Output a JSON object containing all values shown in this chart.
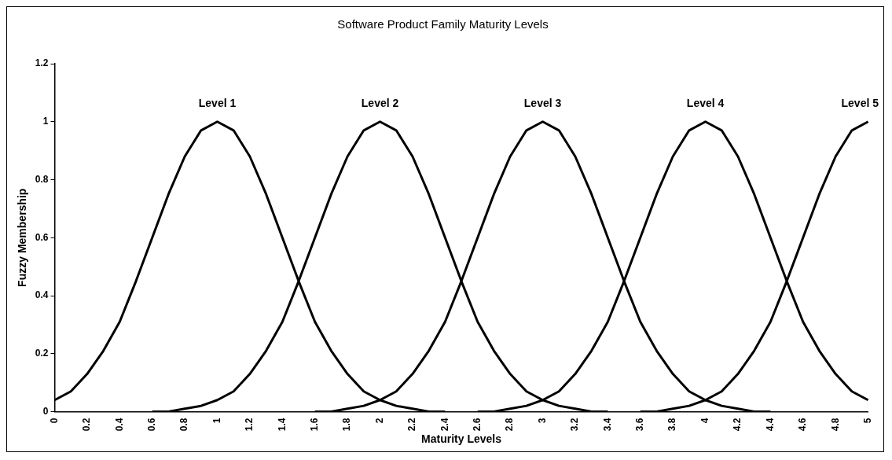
{
  "chart_data": {
    "type": "line",
    "title": "Software Product Family Maturity Levels",
    "xlabel": "Maturity Levels",
    "ylabel": "Fuzzy Membership",
    "categories": [
      "0",
      null,
      "0.2",
      null,
      "0.4",
      null,
      "0.6",
      null,
      "0.8",
      null,
      "1",
      null,
      "1.2",
      null,
      "1.4",
      null,
      "1.6",
      null,
      "1.8",
      null,
      "2",
      null,
      "2.2",
      null,
      "2.4",
      null,
      "2.6",
      null,
      "2.8",
      null,
      "3",
      null,
      "3.2",
      null,
      "3.4",
      null,
      "3.6",
      null,
      "3.8",
      null,
      "4",
      null,
      "4.2",
      null,
      "4.4",
      null,
      "4.6",
      null,
      "4.8",
      null,
      "5"
    ],
    "series": [
      {
        "name": "Level 1",
        "color": "#000000",
        "values": [
          0.04,
          0.07,
          0.13,
          0.21,
          0.31,
          0.45,
          0.6,
          0.75,
          0.88,
          0.97,
          1,
          0.97,
          0.88,
          0.75,
          0.6,
          0.45,
          0.31,
          0.21,
          0.13,
          0.07,
          0.04,
          0.02,
          0.01,
          0,
          0,
          null,
          null,
          null,
          null,
          null,
          null,
          null,
          null,
          null,
          null,
          null,
          null,
          null,
          null,
          null,
          null,
          null,
          null,
          null,
          null,
          null,
          null,
          null,
          null,
          null,
          null
        ]
      },
      {
        "name": "Level 2",
        "color": "#000000",
        "values": [
          null,
          null,
          null,
          null,
          null,
          null,
          0,
          0,
          0.01,
          0.02,
          0.04,
          0.07,
          0.13,
          0.21,
          0.31,
          0.45,
          0.6,
          0.75,
          0.88,
          0.97,
          1,
          0.97,
          0.88,
          0.75,
          0.6,
          0.45,
          0.31,
          0.21,
          0.13,
          0.07,
          0.04,
          0.02,
          0.01,
          0,
          0,
          null,
          null,
          null,
          null,
          null,
          null,
          null,
          null,
          null,
          null,
          null,
          null,
          null,
          null,
          null,
          null
        ]
      },
      {
        "name": "Level 3",
        "color": "#000000",
        "values": [
          null,
          null,
          null,
          null,
          null,
          null,
          null,
          null,
          null,
          null,
          null,
          null,
          null,
          null,
          null,
          null,
          0,
          0,
          0.01,
          0.02,
          0.04,
          0.07,
          0.13,
          0.21,
          0.31,
          0.45,
          0.6,
          0.75,
          0.88,
          0.97,
          1,
          0.97,
          0.88,
          0.75,
          0.6,
          0.45,
          0.31,
          0.21,
          0.13,
          0.07,
          0.04,
          0.02,
          0.01,
          0,
          0,
          null,
          null,
          null,
          null,
          null,
          null
        ]
      },
      {
        "name": "Level 4",
        "color": "#000000",
        "values": [
          null,
          null,
          null,
          null,
          null,
          null,
          null,
          null,
          null,
          null,
          null,
          null,
          null,
          null,
          null,
          null,
          null,
          null,
          null,
          null,
          null,
          null,
          null,
          null,
          null,
          null,
          0,
          0,
          0.01,
          0.02,
          0.04,
          0.07,
          0.13,
          0.21,
          0.31,
          0.45,
          0.6,
          0.75,
          0.88,
          0.97,
          1,
          0.97,
          0.88,
          0.75,
          0.6,
          0.45,
          0.31,
          0.21,
          0.13,
          0.07,
          0.04
        ]
      },
      {
        "name": "Level 5",
        "color": "#000000",
        "values": [
          null,
          null,
          null,
          null,
          null,
          null,
          null,
          null,
          null,
          null,
          null,
          null,
          null,
          null,
          null,
          null,
          null,
          null,
          null,
          null,
          null,
          null,
          null,
          null,
          null,
          null,
          null,
          null,
          null,
          null,
          null,
          null,
          null,
          null,
          null,
          null,
          0,
          0,
          0.01,
          0.02,
          0.04,
          0.07,
          0.13,
          0.21,
          0.31,
          0.45,
          0.6,
          0.75,
          0.88,
          0.97,
          1
        ]
      }
    ],
    "ylim": [
      0,
      1.2
    ],
    "yticks": [
      0,
      0.2,
      0.4,
      0.6,
      0.8,
      1,
      1.2
    ],
    "grid": false,
    "legend": false,
    "marker": "none",
    "line_style": "solid"
  }
}
